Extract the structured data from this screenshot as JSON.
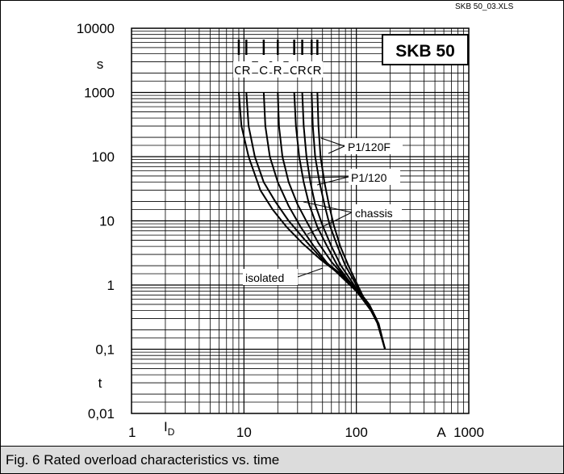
{
  "file_tag": "SKB 50_03.XLS",
  "caption": "Fig. 6 Rated overload characteristics vs. time",
  "chart_data": {
    "type": "line",
    "title": "SKB 50",
    "xlabel": "ID",
    "xunit": "A",
    "ylabel": "t",
    "yunit": "s",
    "xscale": "log",
    "yscale": "log",
    "xlim": [
      1,
      1000
    ],
    "ylim": [
      0.01,
      10000
    ],
    "x_tick_labels": [
      "1",
      "10",
      "100",
      "1000"
    ],
    "y_tick_labels": [
      "10000",
      "1000",
      "100",
      "10",
      "1",
      "0,1",
      "0,01"
    ],
    "grid": true,
    "cr_labels": [
      "C",
      "R",
      "C",
      "R",
      "C",
      "R",
      "C",
      "R"
    ],
    "annotations": [
      "P1/120F",
      "P1/120",
      "chassis",
      "isolated"
    ],
    "series": [
      {
        "x": [
          9.0,
          9.5,
          11,
          14,
          18,
          24,
          33,
          48,
          70,
          100,
          130,
          150,
          180
        ],
        "y": [
          1000,
          300,
          100,
          30,
          15,
          8,
          4.5,
          2.5,
          1.5,
          0.9,
          0.5,
          0.3,
          0.1
        ]
      },
      {
        "x": [
          10.5,
          11,
          12.5,
          15,
          19,
          25,
          35,
          50,
          72,
          100,
          130,
          150,
          180
        ],
        "y": [
          1000,
          300,
          100,
          40,
          20,
          10,
          5,
          2.5,
          1.5,
          0.9,
          0.5,
          0.3,
          0.1
        ]
      },
      {
        "x": [
          15,
          15.5,
          17,
          20,
          25,
          32,
          42,
          55,
          75,
          100,
          130,
          150,
          180
        ],
        "y": [
          1000,
          300,
          100,
          40,
          17,
          8,
          4,
          2.2,
          1.3,
          0.8,
          0.45,
          0.3,
          0.1
        ]
      },
      {
        "x": [
          20,
          20.5,
          22,
          25,
          30,
          37,
          46,
          60,
          80,
          105,
          130,
          150,
          180
        ],
        "y": [
          1000,
          300,
          100,
          40,
          18,
          9,
          4.5,
          2.3,
          1.3,
          0.75,
          0.45,
          0.3,
          0.1
        ]
      },
      {
        "x": [
          28,
          29,
          31,
          34,
          38,
          45,
          55,
          68,
          88,
          110,
          135,
          155,
          180
        ],
        "y": [
          1000,
          300,
          100,
          40,
          18,
          8,
          4,
          2,
          1.1,
          0.65,
          0.4,
          0.25,
          0.1
        ]
      },
      {
        "x": [
          33,
          34,
          36,
          39,
          43,
          50,
          60,
          73,
          92,
          112,
          135,
          155,
          180
        ],
        "y": [
          1000,
          300,
          100,
          40,
          18,
          8.5,
          4,
          2,
          1.1,
          0.65,
          0.4,
          0.25,
          0.1
        ]
      },
      {
        "x": [
          40,
          41,
          43,
          47,
          52,
          58,
          68,
          80,
          97,
          115,
          138,
          155,
          180
        ],
        "y": [
          1000,
          300,
          100,
          40,
          18,
          8.5,
          4,
          2,
          1.1,
          0.6,
          0.38,
          0.25,
          0.1
        ]
      },
      {
        "x": [
          45,
          46,
          48,
          52,
          57,
          63,
          72,
          85,
          100,
          118,
          140,
          158,
          180
        ],
        "y": [
          1000,
          300,
          100,
          40,
          18,
          8.5,
          4,
          2,
          1.1,
          0.6,
          0.38,
          0.25,
          0.1
        ]
      }
    ]
  }
}
